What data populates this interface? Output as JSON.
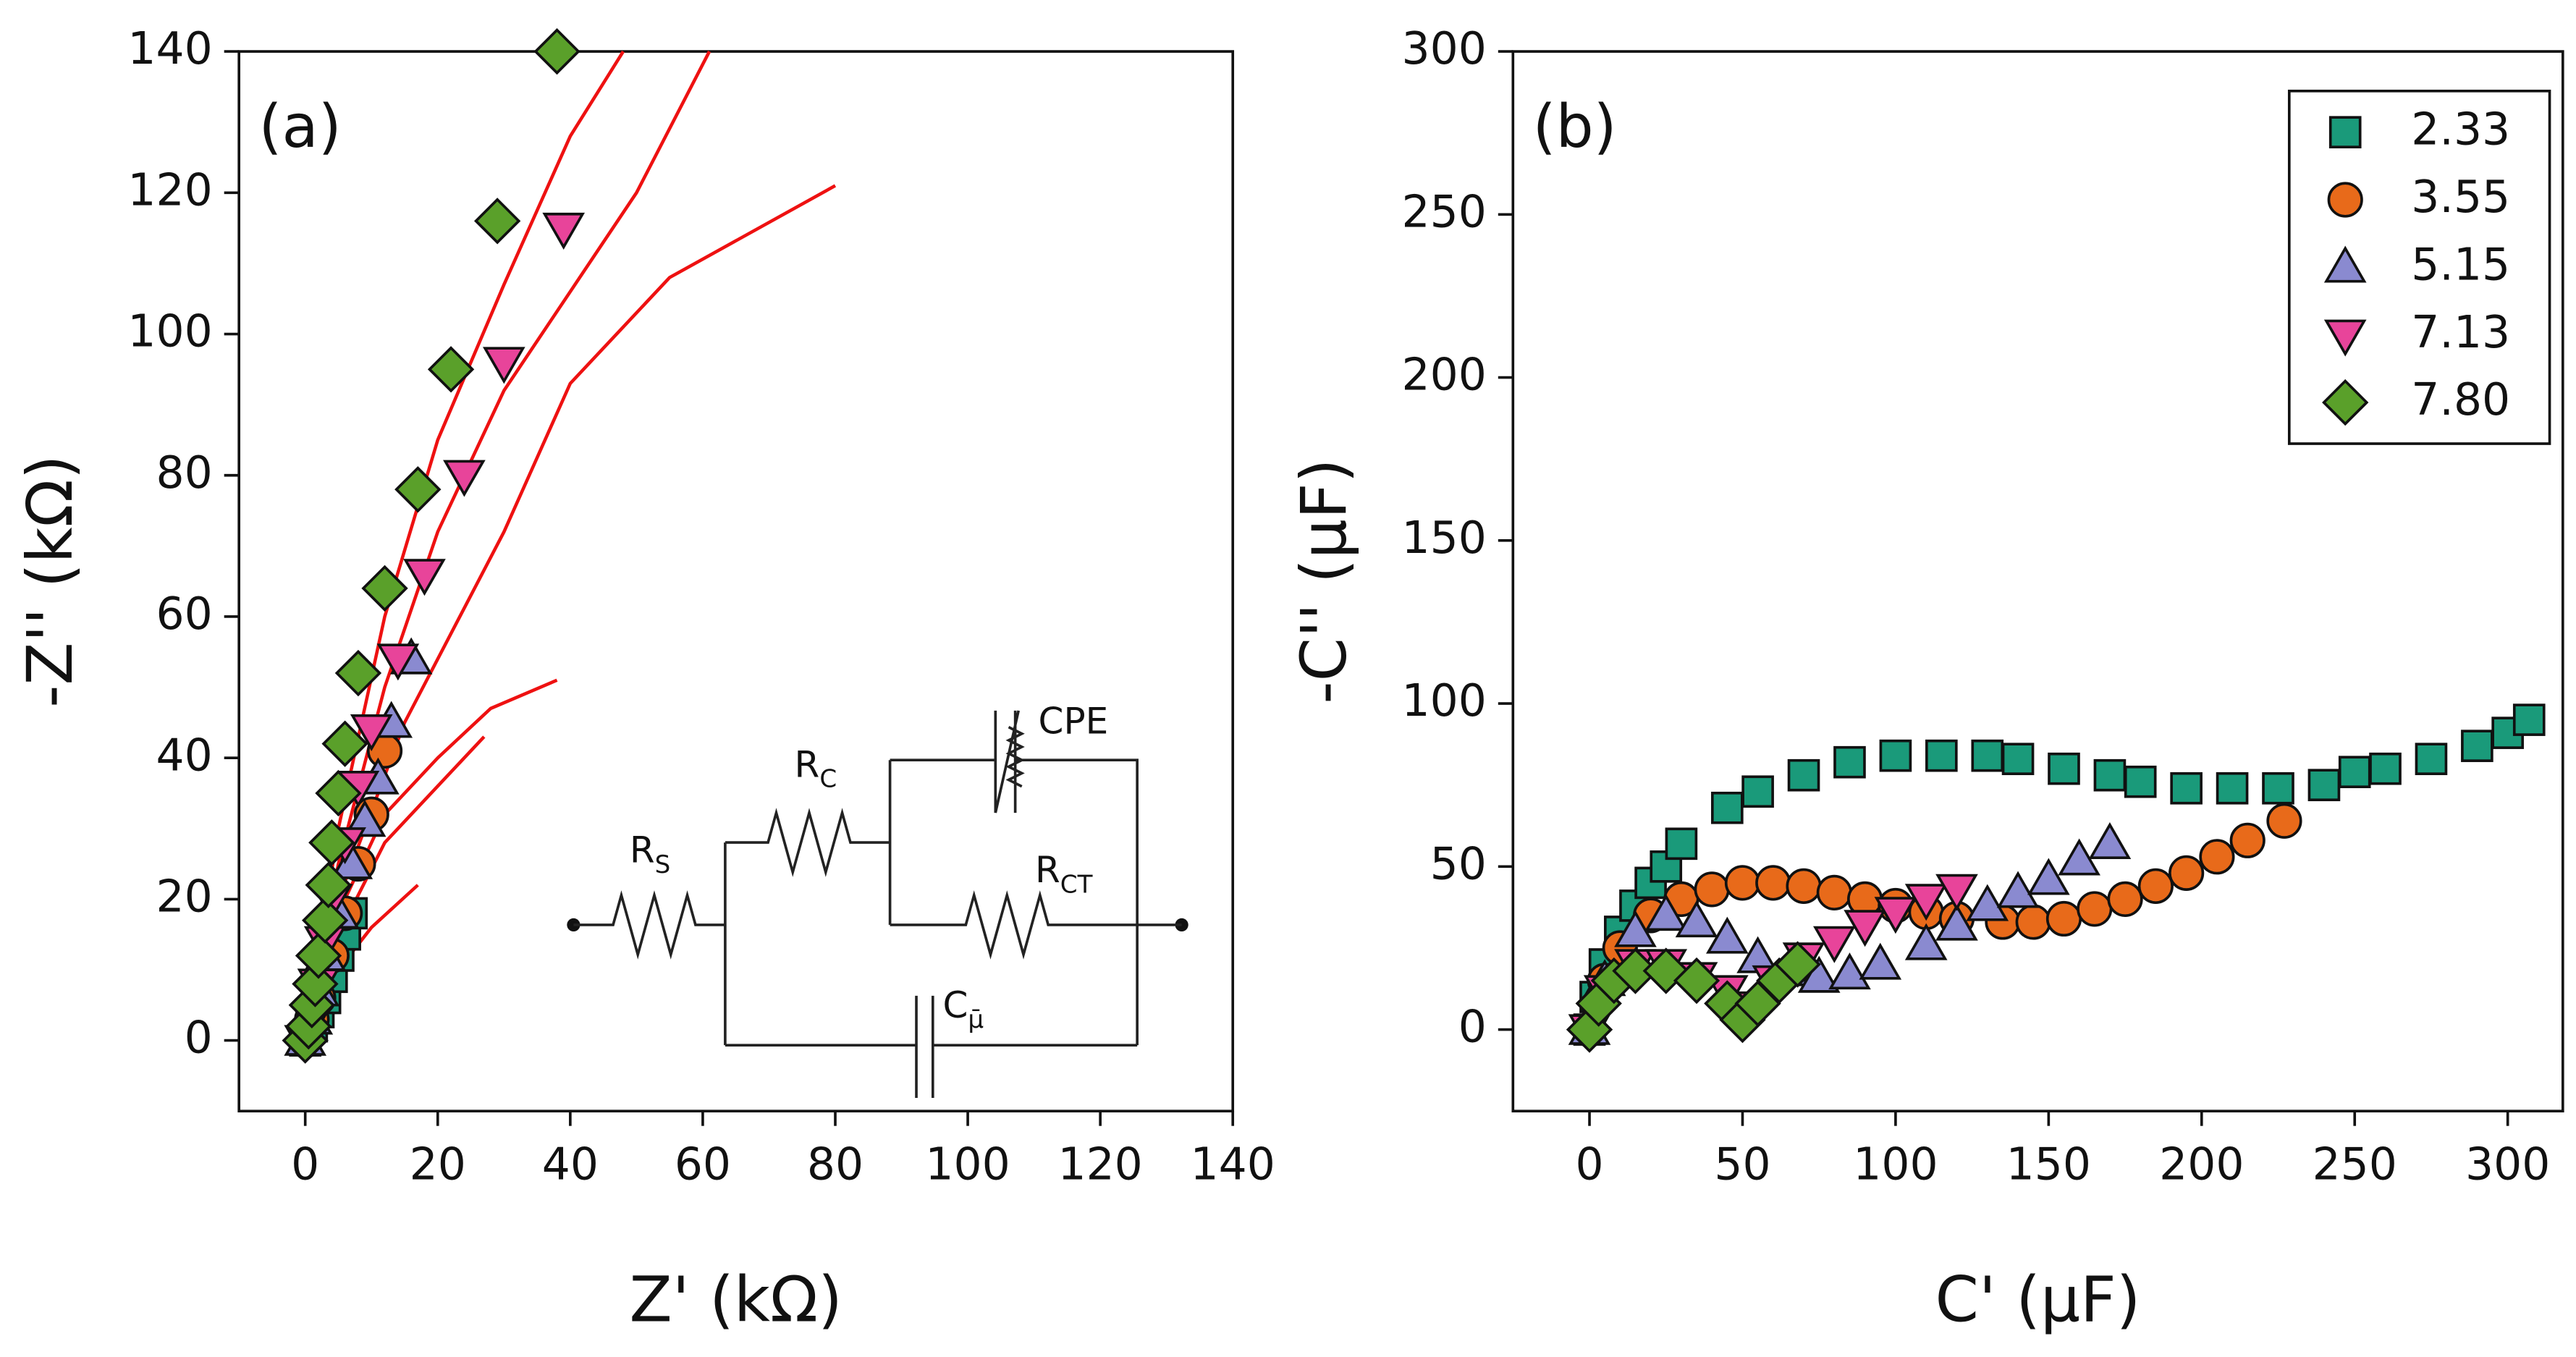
{
  "chart_data": [
    {
      "type": "scatter",
      "panel_label": "(a)",
      "x_label": "Z' (kΩ)",
      "y_label": "-Z'' (kΩ)",
      "xlim": [
        -10,
        140
      ],
      "ylim": [
        -10,
        140
      ],
      "xticks": [
        0,
        20,
        40,
        60,
        80,
        100,
        120,
        140
      ],
      "yticks": [
        0,
        20,
        40,
        60,
        80,
        100,
        120,
        140
      ],
      "legend": false,
      "series": [
        {
          "color": "#1a9a7a",
          "marker": "square",
          "x": [
            0,
            1,
            2,
            3,
            4,
            5,
            6,
            7
          ],
          "y": [
            0,
            2,
            4,
            6,
            9,
            12,
            15,
            18
          ]
        },
        {
          "color": "#e86a1a",
          "marker": "circle",
          "x": [
            0,
            1,
            2,
            4,
            6,
            8,
            10,
            12
          ],
          "y": [
            0,
            3,
            6,
            12,
            18,
            25,
            32,
            41
          ]
        },
        {
          "color": "#8a8ad0",
          "marker": "triangle",
          "x": [
            0,
            1,
            2,
            3,
            5,
            7,
            9,
            11,
            13,
            16
          ],
          "y": [
            0,
            3,
            7,
            12,
            18,
            25,
            31,
            37,
            45,
            54
          ]
        },
        {
          "color": "#e8449a",
          "marker": "triangle-down",
          "x": [
            0,
            1,
            2,
            3,
            4,
            6,
            8,
            10,
            14,
            18,
            24,
            30,
            39
          ],
          "y": [
            0,
            3,
            8,
            14,
            20,
            28,
            36,
            44,
            54,
            66,
            80,
            96,
            115
          ]
        },
        {
          "color": "#5aa02a",
          "marker": "diamond",
          "x": [
            0,
            0.5,
            1,
            1.5,
            2,
            3,
            3.5,
            4,
            5,
            6,
            8,
            12,
            17,
            22,
            29,
            38
          ],
          "y": [
            0,
            2,
            5,
            8,
            12,
            17,
            22,
            28,
            35,
            42,
            52,
            64,
            78,
            95,
            116,
            140
          ]
        }
      ],
      "fits": [
        {
          "color": "#ee1111",
          "x": [
            0,
            5,
            12,
            20,
            30,
            40,
            48
          ],
          "y": [
            0,
            30,
            60,
            85,
            107,
            128,
            140
          ]
        },
        {
          "color": "#ee1111",
          "x": [
            0,
            5,
            12,
            20,
            30,
            40,
            50,
            61
          ],
          "y": [
            0,
            25,
            50,
            72,
            92,
            106,
            120,
            140
          ]
        },
        {
          "color": "#ee1111",
          "x": [
            0,
            5,
            15,
            30,
            40,
            55,
            80
          ],
          "y": [
            0,
            20,
            45,
            72,
            93,
            108,
            121
          ]
        },
        {
          "color": "#ee1111",
          "x": [
            0,
            5,
            12,
            20,
            28,
            38
          ],
          "y": [
            0,
            18,
            32,
            40,
            47,
            51
          ]
        },
        {
          "color": "#ee1111",
          "x": [
            0,
            5,
            12,
            20,
            27
          ],
          "y": [
            0,
            15,
            28,
            36,
            43
          ]
        },
        {
          "color": "#ee1111",
          "x": [
            0,
            5,
            10,
            17
          ],
          "y": [
            0,
            10,
            16,
            22
          ]
        }
      ],
      "circuit": [
        {
          "text": "R",
          "sub": "S"
        },
        {
          "text": "R",
          "sub": "C"
        },
        {
          "text": "CPE"
        },
        {
          "text": "R",
          "sub": "CT"
        },
        {
          "text": "C",
          "sub": "μ̄"
        }
      ]
    },
    {
      "type": "scatter",
      "panel_label": "(b)",
      "x_label": "C' (μF)",
      "y_label": "-C'' (μF)",
      "xlim": [
        -25,
        318
      ],
      "ylim": [
        -25,
        300
      ],
      "xticks": [
        0,
        50,
        100,
        150,
        200,
        250,
        300
      ],
      "yticks": [
        0,
        50,
        100,
        150,
        200,
        250,
        300
      ],
      "legend": "upper right",
      "series": [
        {
          "name": "2.33",
          "color": "#1a9a7a",
          "marker": "square",
          "x": [
            0,
            2,
            5,
            10,
            15,
            20,
            25,
            30,
            45,
            55,
            70,
            85,
            100,
            115,
            130,
            140,
            155,
            170,
            180,
            195,
            210,
            225,
            240,
            250,
            260,
            275,
            290,
            300,
            307
          ],
          "y": [
            0,
            10,
            20,
            30,
            38,
            45,
            50,
            57,
            68,
            73,
            78,
            82,
            84,
            84,
            84,
            83,
            80,
            78,
            76,
            74,
            74,
            74,
            75,
            79,
            80,
            83,
            87,
            91,
            95
          ]
        },
        {
          "name": "3.55",
          "color": "#e86a1a",
          "marker": "circle",
          "x": [
            0,
            5,
            10,
            20,
            30,
            40,
            50,
            60,
            70,
            80,
            90,
            100,
            110,
            120,
            135,
            145,
            155,
            165,
            175,
            185,
            195,
            205,
            215,
            227
          ],
          "y": [
            0,
            15,
            25,
            35,
            40,
            43,
            45,
            45,
            44,
            42,
            40,
            38,
            36,
            34,
            33,
            33,
            34,
            37,
            40,
            44,
            48,
            53,
            58,
            64
          ]
        },
        {
          "name": "5.15",
          "color": "#8a8ad0",
          "marker": "triangle",
          "x": [
            0,
            5,
            15,
            25,
            35,
            45,
            55,
            65,
            75,
            85,
            95,
            110,
            120,
            130,
            140,
            150,
            160,
            170
          ],
          "y": [
            0,
            15,
            30,
            35,
            33,
            28,
            22,
            18,
            16,
            17,
            20,
            26,
            32,
            38,
            42,
            46,
            52,
            57
          ]
        },
        {
          "name": "7.13",
          "color": "#e8449a",
          "marker": "triangle-down",
          "x": [
            0,
            5,
            15,
            25,
            35,
            45,
            50,
            60,
            70,
            80,
            90,
            100,
            110,
            120
          ],
          "y": [
            0,
            12,
            20,
            20,
            16,
            12,
            7,
            15,
            22,
            27,
            32,
            36,
            40,
            43
          ]
        },
        {
          "name": "7.80",
          "color": "#5aa02a",
          "marker": "diamond",
          "x": [
            0,
            3,
            8,
            15,
            25,
            35,
            45,
            50,
            55,
            62,
            68
          ],
          "y": [
            0,
            8,
            15,
            18,
            18,
            15,
            8,
            3,
            8,
            15,
            20
          ]
        }
      ]
    }
  ]
}
